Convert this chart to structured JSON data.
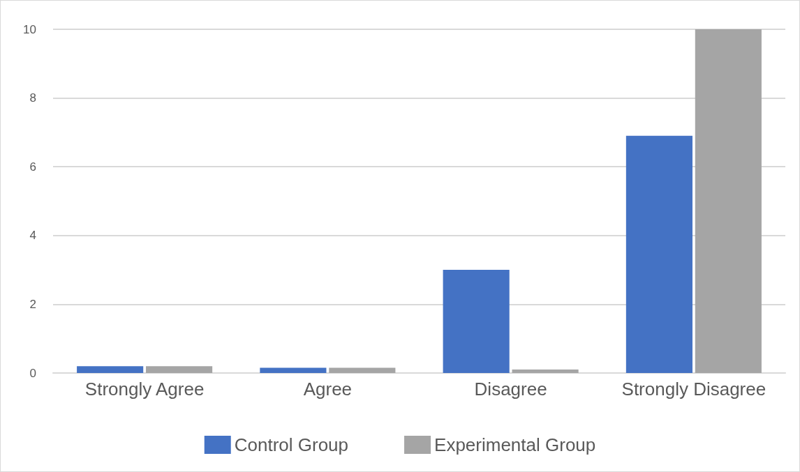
{
  "chart_data": {
    "type": "bar",
    "categories": [
      "Strongly Agree",
      "Agree",
      "Disagree",
      "Strongly Disagree"
    ],
    "series": [
      {
        "name": "Control Group",
        "color": "#4472c4",
        "values": [
          0.2,
          0.15,
          3,
          6.9
        ]
      },
      {
        "name": "Experimental Group",
        "color": "#a5a5a5",
        "values": [
          0.2,
          0.15,
          0.1,
          10
        ]
      }
    ],
    "ylim": [
      0,
      10
    ],
    "yticks": [
      0,
      2,
      4,
      6,
      8,
      10
    ],
    "grid": "y",
    "legend": "bottom"
  }
}
